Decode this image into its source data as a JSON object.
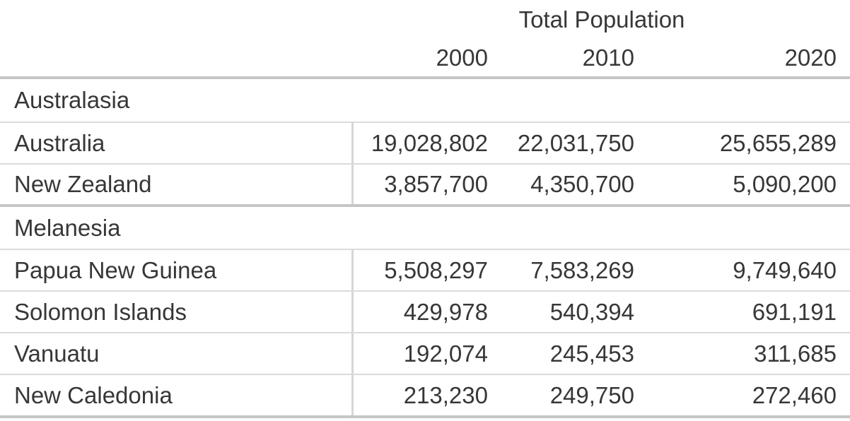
{
  "table": {
    "title": "Total Population",
    "year_headers": [
      "2000",
      "2010",
      "2020"
    ],
    "sections": [
      {
        "name": "Australasia",
        "rows": [
          {
            "label": "Australia",
            "values": [
              "19,028,802",
              "22,031,750",
              "25,655,289"
            ]
          },
          {
            "label": "New Zealand",
            "values": [
              "3,857,700",
              "4,350,700",
              "5,090,200"
            ]
          }
        ]
      },
      {
        "name": "Melanesia",
        "rows": [
          {
            "label": "Papua New Guinea",
            "values": [
              "5,508,297",
              "7,583,269",
              "9,749,640"
            ]
          },
          {
            "label": "Solomon Islands",
            "values": [
              "429,978",
              "540,394",
              "691,191"
            ]
          },
          {
            "label": "Vanuatu",
            "values": [
              "192,074",
              "245,453",
              "311,685"
            ]
          },
          {
            "label": "New Caledonia",
            "values": [
              "213,230",
              "249,750",
              "272,460"
            ]
          }
        ]
      }
    ]
  },
  "colors": {
    "text": "#373737",
    "thick_border": "#c6c6c6",
    "thin_border": "#dbdbdb",
    "column_divider": "#d6d6d6",
    "background": "#ffffff"
  },
  "chart_data": {
    "type": "table",
    "title": "Total Population",
    "columns": [
      "2000",
      "2010",
      "2020"
    ],
    "groups": [
      {
        "name": "Australasia",
        "rows": [
          {
            "label": "Australia",
            "values": [
              19028802,
              22031750,
              25655289
            ]
          },
          {
            "label": "New Zealand",
            "values": [
              3857700,
              4350700,
              5090200
            ]
          }
        ]
      },
      {
        "name": "Melanesia",
        "rows": [
          {
            "label": "Papua New Guinea",
            "values": [
              5508297,
              7583269,
              9749640
            ]
          },
          {
            "label": "Solomon Islands",
            "values": [
              429978,
              540394,
              691191
            ]
          },
          {
            "label": "Vanuatu",
            "values": [
              192074,
              245453,
              311685
            ]
          },
          {
            "label": "New Caledonia",
            "values": [
              213230,
              249750,
              272460
            ]
          }
        ]
      }
    ],
    "layout": {
      "grid": "row and section separators",
      "value_alignment": "right",
      "group_rows_span_full_width": true
    }
  }
}
